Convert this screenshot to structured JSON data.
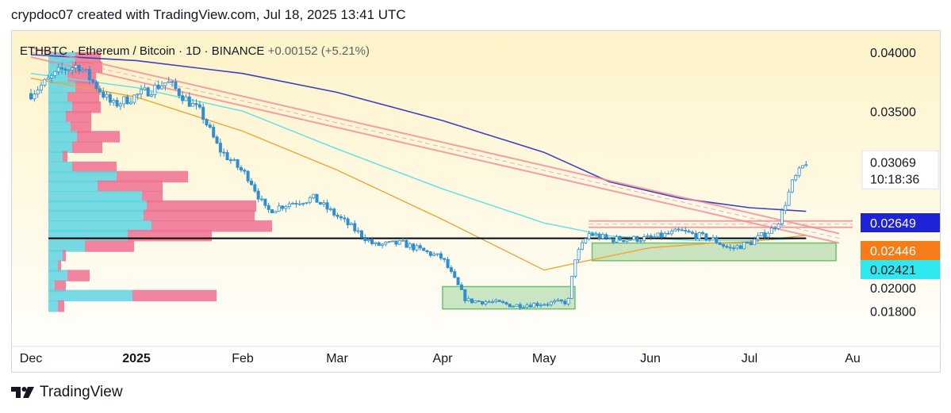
{
  "header": {
    "attribution": "crypdoc07 created with TradingView.com, Jul 18, 2025 13:41 UTC"
  },
  "footer": {
    "brand": "TradingView",
    "logo_icon": "tradingview-logo-icon"
  },
  "colors": {
    "background_top": "#fdf3c8",
    "background_bottom": "#ffffff",
    "candle": "#2f8ed0",
    "ma_blue": "#3b3fc4",
    "ma_cyan": "#5ee0e4",
    "ma_orange": "#f0a530",
    "trendline": "#f08a96",
    "support_line": "#000000",
    "box_fill": "#9ed19a",
    "vp_blue": "#5fd3e0",
    "vp_pink": "#ef7090",
    "label_blue": "#1e22d8",
    "label_orange": "#f57c16",
    "label_cyan": "#2ee8f0"
  },
  "chart_data": {
    "type": "candlestick",
    "symbol": "ETHBTC",
    "name": "Ethereum / Bitcoin",
    "interval": "1D",
    "exchange": "BINANCE",
    "change": "+0.00152 (+5.21%)",
    "x_ticks": [
      "Dec",
      "2025",
      "Feb",
      "Mar",
      "Apr",
      "May",
      "Jun",
      "Jul",
      "Au"
    ],
    "y_ticks": [
      "0.04000",
      "0.03500",
      "0.02000",
      "0.01800"
    ],
    "ylim": [
      0.0165,
      0.0415
    ],
    "last_price": {
      "value": 0.03069,
      "label": "0.03069",
      "countdown": "10:18:36"
    },
    "price_labels": [
      {
        "label": "0.02649",
        "value": 0.02649,
        "color": "#1e22d8",
        "text_color": "#ffffff"
      },
      {
        "label": "0.02446",
        "value": 0.02446,
        "color": "#f57c16",
        "text_color": "#ffffff"
      },
      {
        "label": "0.02421",
        "value": 0.02421,
        "color": "#2ee8f0",
        "text_color": "#131722"
      }
    ],
    "close_path": [
      [
        "Dec 1",
        0.0365
      ],
      [
        "Dec 10",
        0.0385
      ],
      [
        "Dec 15",
        0.0389
      ],
      [
        "Dec 25",
        0.0355
      ],
      [
        "Jan 5",
        0.0368
      ],
      [
        "Jan 10",
        0.0375
      ],
      [
        "Jan 20",
        0.0348
      ],
      [
        "Jan 25",
        0.0318
      ],
      [
        "Feb 3",
        0.0293
      ],
      [
        "Feb 8",
        0.0265
      ],
      [
        "Feb 15",
        0.0272
      ],
      [
        "Feb 22",
        0.0276
      ],
      [
        "Mar 5",
        0.0252
      ],
      [
        "Mar 12",
        0.0236
      ],
      [
        "Mar 20",
        0.0238
      ],
      [
        "Apr 1",
        0.0225
      ],
      [
        "Apr 8",
        0.0189
      ],
      [
        "Apr 15",
        0.0188
      ],
      [
        "Apr 22",
        0.0185
      ],
      [
        "May 8",
        0.0188
      ],
      [
        "May 10",
        0.0225
      ],
      [
        "May 14",
        0.0246
      ],
      [
        "May 20",
        0.0241
      ],
      [
        "Jun 1",
        0.0242
      ],
      [
        "Jun 10",
        0.0248
      ],
      [
        "Jun 20",
        0.0241
      ],
      [
        "Jun 25",
        0.0233
      ],
      [
        "Jul 1",
        0.0238
      ],
      [
        "Jul 8",
        0.025
      ],
      [
        "Jul 10",
        0.0258
      ],
      [
        "Jul 14",
        0.029
      ],
      [
        "Jul 18",
        0.0307
      ]
    ],
    "moving_averages": [
      {
        "name": "ma_blue",
        "color": "#3b3fc4",
        "end_value": 0.02649
      },
      {
        "name": "ma_orange",
        "color": "#f0a530",
        "end_value": 0.02446
      },
      {
        "name": "ma_cyan",
        "color": "#5ee0e4",
        "end_value": 0.02421
      }
    ],
    "horizontal_line": {
      "value": 0.0242,
      "from": "Dec 1",
      "to": "Jul 18"
    },
    "resistance_band": {
      "value": 0.0254,
      "from": "May 14",
      "to": "Aug 1"
    },
    "descending_channel": {
      "from": [
        "Dec 1",
        0.04
      ],
      "to": [
        "Jul 28",
        0.0242
      ]
    },
    "accumulation_boxes": [
      {
        "from": "Apr 1",
        "to": "May 10",
        "low": 0.0182,
        "high": 0.0201
      },
      {
        "from": "May 15",
        "to": "Jul 27",
        "low": 0.0223,
        "high": 0.0238
      }
    ],
    "volume_profile_rows": [
      {
        "price": 0.0395,
        "buy": 34,
        "sell": 32
      },
      {
        "price": 0.0387,
        "buy": 30,
        "sell": 38
      },
      {
        "price": 0.0378,
        "buy": 24,
        "sell": 36
      },
      {
        "price": 0.037,
        "buy": 34,
        "sell": 30
      },
      {
        "price": 0.0361,
        "buy": 24,
        "sell": 40
      },
      {
        "price": 0.0353,
        "buy": 30,
        "sell": 36
      },
      {
        "price": 0.0345,
        "buy": 22,
        "sell": 32
      },
      {
        "price": 0.0336,
        "buy": 28,
        "sell": 26
      },
      {
        "price": 0.0328,
        "buy": 36,
        "sell": 54
      },
      {
        "price": 0.0319,
        "buy": 30,
        "sell": 38
      },
      {
        "price": 0.0311,
        "buy": 18,
        "sell": 6
      },
      {
        "price": 0.0302,
        "buy": 30,
        "sell": 56
      },
      {
        "price": 0.0294,
        "buy": 86,
        "sell": 90
      },
      {
        "price": 0.0286,
        "buy": 62,
        "sell": 82
      },
      {
        "price": 0.0277,
        "buy": 118,
        "sell": 26
      },
      {
        "price": 0.0269,
        "buy": 124,
        "sell": 138
      },
      {
        "price": 0.0261,
        "buy": 120,
        "sell": 140
      },
      {
        "price": 0.0252,
        "buy": 130,
        "sell": 152
      },
      {
        "price": 0.0244,
        "buy": 100,
        "sell": 106
      },
      {
        "price": 0.0235,
        "buy": 46,
        "sell": 62
      },
      {
        "price": 0.0227,
        "buy": 18,
        "sell": 4
      },
      {
        "price": 0.0218,
        "buy": 12,
        "sell": 4
      },
      {
        "price": 0.021,
        "buy": 24,
        "sell": 28
      },
      {
        "price": 0.0201,
        "buy": 8,
        "sell": 14
      },
      {
        "price": 0.0193,
        "buy": 106,
        "sell": 106
      },
      {
        "price": 0.0184,
        "buy": 12,
        "sell": 8
      }
    ]
  }
}
